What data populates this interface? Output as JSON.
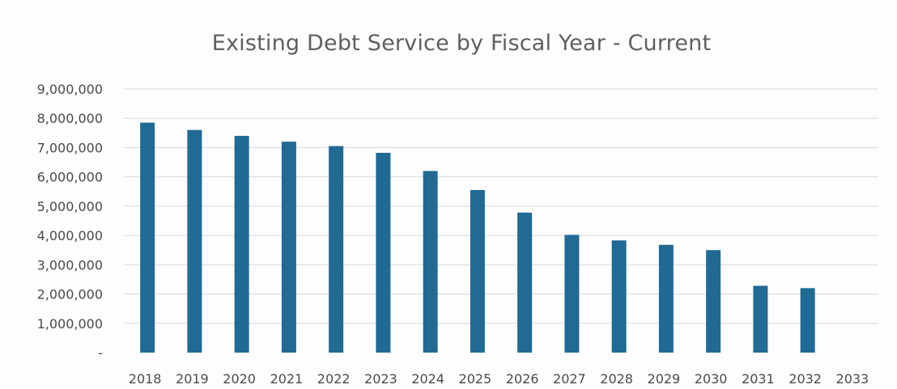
{
  "chart_data": {
    "type": "bar",
    "title": "Existing Debt Service by Fiscal Year - Current",
    "xlabel": "",
    "ylabel": "",
    "categories": [
      "2018",
      "2019",
      "2020",
      "2021",
      "2022",
      "2023",
      "2024",
      "2025",
      "2026",
      "2027",
      "2028",
      "2029",
      "2030",
      "2031",
      "2032",
      "2033"
    ],
    "values": [
      7850000,
      7600000,
      7400000,
      7200000,
      7050000,
      6820000,
      6200000,
      5550000,
      4780000,
      4020000,
      3830000,
      3680000,
      3500000,
      2280000,
      2200000,
      0
    ],
    "ylim": [
      0,
      9000000
    ],
    "yticks": [
      {
        "value": 9000000,
        "label": "9,000,000"
      },
      {
        "value": 8000000,
        "label": "8,000,000"
      },
      {
        "value": 7000000,
        "label": "7,000,000"
      },
      {
        "value": 6000000,
        "label": "6,000,000"
      },
      {
        "value": 5000000,
        "label": "5,000,000"
      },
      {
        "value": 4000000,
        "label": "4,000,000"
      },
      {
        "value": 3000000,
        "label": "3,000,000"
      },
      {
        "value": 2000000,
        "label": "2,000,000"
      },
      {
        "value": 1000000,
        "label": "1,000,000"
      },
      {
        "value": 0,
        "label": "-"
      }
    ],
    "grid": true,
    "legend": "none",
    "bar_color": "#216a94"
  }
}
